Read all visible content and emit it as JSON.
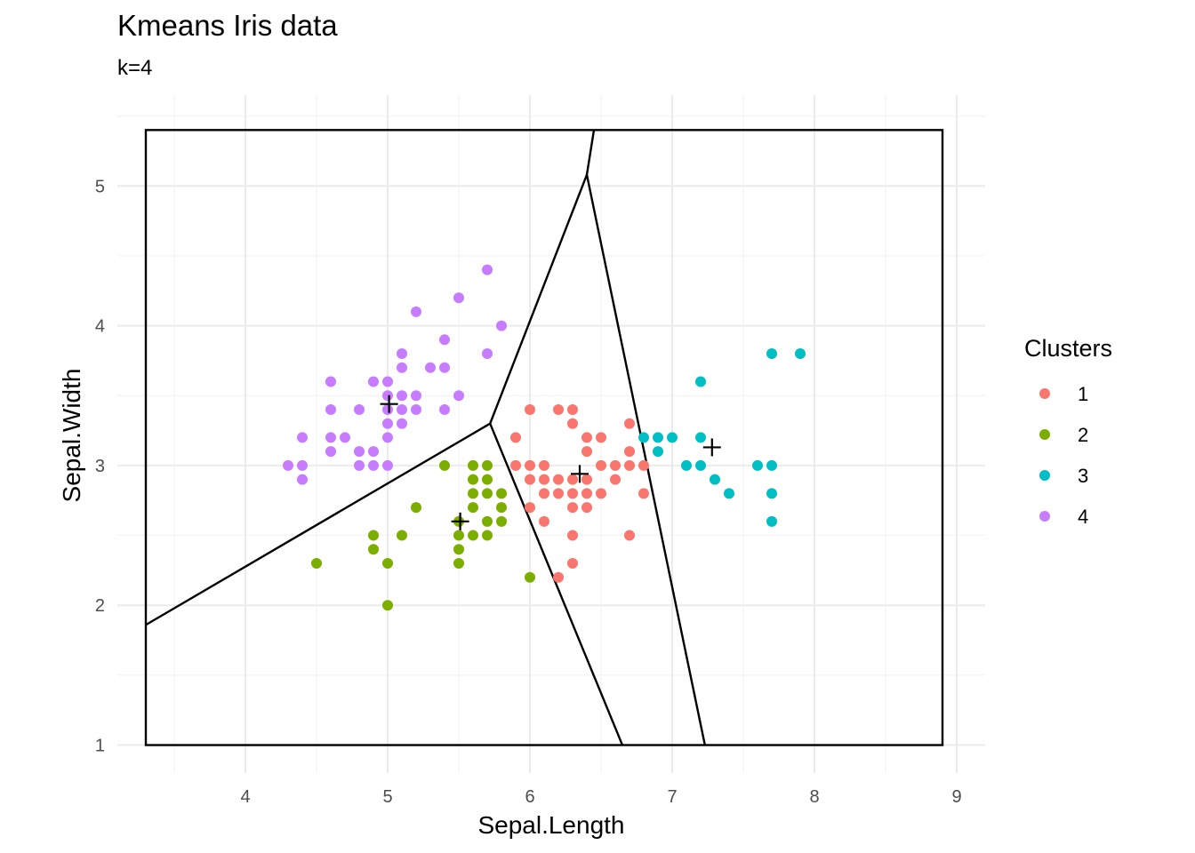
{
  "chart_data": {
    "type": "scatter",
    "title": "Kmeans Iris data",
    "subtitle": "k=4",
    "xlabel": "Sepal.Length",
    "ylabel": "Sepal.Width",
    "xlim": [
      3.1,
      9.2
    ],
    "ylim": [
      0.8,
      5.65
    ],
    "xticks": [
      "4",
      "5",
      "6",
      "7",
      "8",
      "9"
    ],
    "xtick_values": [
      4,
      5,
      6,
      7,
      8,
      9
    ],
    "yticks": [
      "1",
      "2",
      "3",
      "4",
      "5"
    ],
    "ytick_values": [
      1,
      2,
      3,
      4,
      5
    ],
    "grid": true,
    "legend": {
      "title": "Clusters",
      "placement": "right",
      "entries": [
        "1",
        "2",
        "3",
        "4"
      ]
    },
    "colors": {
      "1": "#F8766D",
      "2": "#7CAE00",
      "3": "#00BFC4",
      "4": "#C77CFF"
    },
    "series": [
      {
        "name": "1",
        "points": [
          [
            5.9,
            3.2
          ],
          [
            5.9,
            3.0
          ],
          [
            6.0,
            3.4
          ],
          [
            6.0,
            3.0
          ],
          [
            6.0,
            2.9
          ],
          [
            6.0,
            2.7
          ],
          [
            6.1,
            3.0
          ],
          [
            6.1,
            2.9
          ],
          [
            6.1,
            2.8
          ],
          [
            6.1,
            2.6
          ],
          [
            6.2,
            3.4
          ],
          [
            6.2,
            2.9
          ],
          [
            6.2,
            2.8
          ],
          [
            6.2,
            2.2
          ],
          [
            6.3,
            3.4
          ],
          [
            6.3,
            3.3
          ],
          [
            6.3,
            2.9
          ],
          [
            6.3,
            2.8
          ],
          [
            6.3,
            2.7
          ],
          [
            6.3,
            2.5
          ],
          [
            6.3,
            2.3
          ],
          [
            6.4,
            3.2
          ],
          [
            6.4,
            3.1
          ],
          [
            6.4,
            2.9
          ],
          [
            6.4,
            2.8
          ],
          [
            6.4,
            2.7
          ],
          [
            6.5,
            3.2
          ],
          [
            6.5,
            3.0
          ],
          [
            6.5,
            2.8
          ],
          [
            6.6,
            3.0
          ],
          [
            6.6,
            2.9
          ],
          [
            6.7,
            3.3
          ],
          [
            6.7,
            3.1
          ],
          [
            6.7,
            3.0
          ],
          [
            6.7,
            2.5
          ],
          [
            6.8,
            3.0
          ],
          [
            6.8,
            2.8
          ]
        ]
      },
      {
        "name": "2",
        "points": [
          [
            4.5,
            2.3
          ],
          [
            4.9,
            2.5
          ],
          [
            4.9,
            2.4
          ],
          [
            5.0,
            2.3
          ],
          [
            5.0,
            2.0
          ],
          [
            5.1,
            2.5
          ],
          [
            5.2,
            2.7
          ],
          [
            5.4,
            3.0
          ],
          [
            5.5,
            2.6
          ],
          [
            5.5,
            2.5
          ],
          [
            5.5,
            2.4
          ],
          [
            5.5,
            2.3
          ],
          [
            5.6,
            3.0
          ],
          [
            5.6,
            2.9
          ],
          [
            5.6,
            2.8
          ],
          [
            5.6,
            2.7
          ],
          [
            5.6,
            2.5
          ],
          [
            5.7,
            3.0
          ],
          [
            5.7,
            2.9
          ],
          [
            5.7,
            2.8
          ],
          [
            5.7,
            2.6
          ],
          [
            5.7,
            2.5
          ],
          [
            5.8,
            2.8
          ],
          [
            5.8,
            2.7
          ],
          [
            5.8,
            2.6
          ],
          [
            6.0,
            2.2
          ]
        ]
      },
      {
        "name": "3",
        "points": [
          [
            6.8,
            3.2
          ],
          [
            6.9,
            3.2
          ],
          [
            6.9,
            3.1
          ],
          [
            7.0,
            3.2
          ],
          [
            7.1,
            3.0
          ],
          [
            7.2,
            3.6
          ],
          [
            7.2,
            3.2
          ],
          [
            7.2,
            3.0
          ],
          [
            7.3,
            2.9
          ],
          [
            7.4,
            2.8
          ],
          [
            7.6,
            3.0
          ],
          [
            7.7,
            3.8
          ],
          [
            7.7,
            3.0
          ],
          [
            7.7,
            2.8
          ],
          [
            7.7,
            2.6
          ],
          [
            7.9,
            3.8
          ]
        ]
      },
      {
        "name": "4",
        "points": [
          [
            4.3,
            3.0
          ],
          [
            4.4,
            3.2
          ],
          [
            4.4,
            3.0
          ],
          [
            4.4,
            2.9
          ],
          [
            4.6,
            3.6
          ],
          [
            4.6,
            3.4
          ],
          [
            4.6,
            3.2
          ],
          [
            4.6,
            3.1
          ],
          [
            4.7,
            3.2
          ],
          [
            4.8,
            3.4
          ],
          [
            4.8,
            3.1
          ],
          [
            4.8,
            3.0
          ],
          [
            4.9,
            3.6
          ],
          [
            4.9,
            3.1
          ],
          [
            4.9,
            3.0
          ],
          [
            5.0,
            3.6
          ],
          [
            5.0,
            3.5
          ],
          [
            5.0,
            3.4
          ],
          [
            5.0,
            3.3
          ],
          [
            5.0,
            3.2
          ],
          [
            5.0,
            3.0
          ],
          [
            5.1,
            3.8
          ],
          [
            5.1,
            3.7
          ],
          [
            5.1,
            3.5
          ],
          [
            5.1,
            3.4
          ],
          [
            5.1,
            3.3
          ],
          [
            5.2,
            4.1
          ],
          [
            5.2,
            3.5
          ],
          [
            5.2,
            3.4
          ],
          [
            5.3,
            3.7
          ],
          [
            5.4,
            3.9
          ],
          [
            5.4,
            3.7
          ],
          [
            5.4,
            3.4
          ],
          [
            5.5,
            4.2
          ],
          [
            5.5,
            3.5
          ],
          [
            5.7,
            4.4
          ],
          [
            5.7,
            3.8
          ],
          [
            5.8,
            4.0
          ]
        ]
      }
    ],
    "centroids": [
      [
        6.35,
        2.94
      ],
      [
        5.51,
        2.6
      ],
      [
        7.28,
        3.13
      ],
      [
        5.01,
        3.44
      ]
    ],
    "voronoi": {
      "bbox": [
        3.3,
        1.0,
        8.9,
        5.4
      ],
      "edges": [
        [
          [
            3.3,
            1.86
          ],
          [
            5.72,
            3.3
          ]
        ],
        [
          [
            5.72,
            3.3
          ],
          [
            6.4,
            5.08
          ]
        ],
        [
          [
            5.72,
            3.3
          ],
          [
            6.65,
            1.0
          ]
        ],
        [
          [
            6.4,
            5.08
          ],
          [
            6.45,
            5.4
          ]
        ],
        [
          [
            6.4,
            5.08
          ],
          [
            7.23,
            1.0
          ]
        ]
      ]
    }
  }
}
